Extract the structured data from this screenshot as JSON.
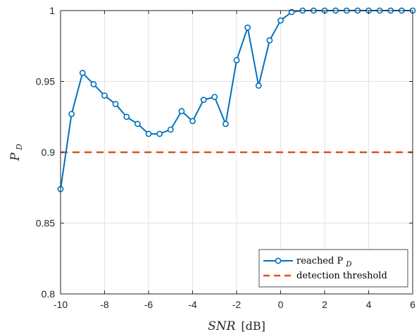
{
  "chart_data": {
    "type": "line",
    "xlabel": "SNR",
    "xlabel_unit": "[dB]",
    "ylabel": "P",
    "ylabel_sub": "D",
    "xlim": [
      -10,
      6
    ],
    "ylim": [
      0.8,
      1.0
    ],
    "grid": true,
    "legend_placement": "bottom-right",
    "x_ticks": [
      "-10",
      "-8",
      "-6",
      "-4",
      "-2",
      "0",
      "2",
      "4",
      "6"
    ],
    "y_ticks": [
      "0.8",
      "0.85",
      "0.9",
      "0.95",
      "1"
    ],
    "series": [
      {
        "name": "reached P_D",
        "label_main": "reached P",
        "label_sub": "D",
        "color": "#0072BD",
        "style": "line-with-circle-markers",
        "x": [
          -10,
          -9.5,
          -9,
          -8.5,
          -8,
          -7.5,
          -7,
          -6.5,
          -6,
          -5.5,
          -5,
          -4.5,
          -4,
          -3.5,
          -3,
          -2.5,
          -2,
          -1.5,
          -1,
          -0.5,
          0,
          0.5,
          1,
          1.5,
          2,
          2.5,
          3,
          3.5,
          4,
          4.5,
          5,
          5.5,
          6
        ],
        "y": [
          0.874,
          0.927,
          0.956,
          0.948,
          0.94,
          0.934,
          0.925,
          0.92,
          0.913,
          0.913,
          0.916,
          0.929,
          0.922,
          0.937,
          0.939,
          0.92,
          0.965,
          0.988,
          0.947,
          0.979,
          0.993,
          0.999,
          1.0,
          1.0,
          1.0,
          1.0,
          1.0,
          1.0,
          1.0,
          1.0,
          1.0,
          1.0,
          1.0
        ]
      },
      {
        "name": "detection threshold",
        "label_main": "detection threshold",
        "color": "#D95319",
        "style": "dashed",
        "x": [
          -10,
          6
        ],
        "y": [
          0.9,
          0.9
        ]
      }
    ]
  }
}
